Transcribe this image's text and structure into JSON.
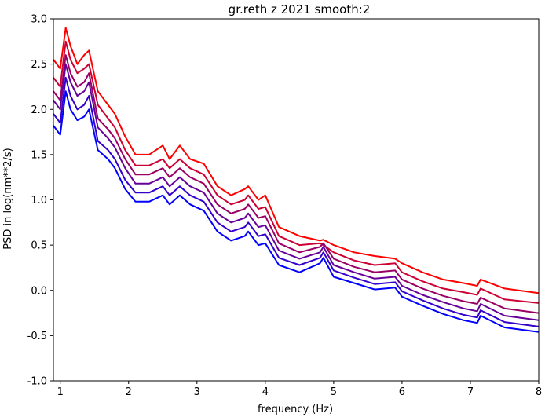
{
  "chart_data": {
    "type": "line",
    "title": "gr.reth z 2021 smooth:2",
    "xlabel": "frequency (Hz)",
    "ylabel": "PSD in log(nm**2/s)",
    "xlim": [
      0.9,
      8.0
    ],
    "ylim": [
      -1.0,
      3.0
    ],
    "xticks": [
      "1",
      "2",
      "3",
      "4",
      "5",
      "6",
      "7",
      "8"
    ],
    "yticks": [
      "3.0",
      "2.5",
      "2.0",
      "1.5",
      "1.0",
      "0.5",
      "0.0",
      "-0.5",
      "-1.0"
    ],
    "grid": false,
    "legend": "none",
    "series": [
      {
        "color": "#ff0000",
        "x": [
          0.9,
          1.0,
          1.08,
          1.15,
          1.25,
          1.35,
          1.42,
          1.55,
          1.7,
          1.8,
          1.95,
          2.1,
          2.3,
          2.5,
          2.6,
          2.75,
          2.9,
          3.1,
          3.3,
          3.5,
          3.7,
          3.75,
          3.9,
          4.0,
          4.2,
          4.5,
          4.8,
          4.85,
          5.0,
          5.3,
          5.6,
          5.9,
          6.0,
          6.3,
          6.6,
          6.9,
          7.1,
          7.15,
          7.5,
          8.0
        ],
        "y": [
          2.55,
          2.45,
          2.9,
          2.7,
          2.5,
          2.6,
          2.65,
          2.2,
          2.05,
          1.95,
          1.7,
          1.5,
          1.5,
          1.6,
          1.45,
          1.6,
          1.45,
          1.4,
          1.15,
          1.05,
          1.12,
          1.15,
          1.0,
          1.05,
          0.7,
          0.6,
          0.55,
          0.56,
          0.5,
          0.42,
          0.38,
          0.35,
          0.3,
          0.2,
          0.12,
          0.08,
          0.05,
          0.12,
          0.02,
          -0.03
        ]
      },
      {
        "color": "#cc0033",
        "x": [
          0.9,
          1.0,
          1.08,
          1.15,
          1.25,
          1.35,
          1.42,
          1.55,
          1.7,
          1.8,
          1.95,
          2.1,
          2.3,
          2.5,
          2.6,
          2.75,
          2.9,
          3.1,
          3.3,
          3.5,
          3.7,
          3.75,
          3.9,
          4.0,
          4.2,
          4.5,
          4.8,
          4.85,
          5.0,
          5.3,
          5.6,
          5.9,
          6.0,
          6.3,
          6.6,
          6.9,
          7.1,
          7.15,
          7.5,
          8.0
        ],
        "y": [
          2.35,
          2.25,
          2.75,
          2.55,
          2.4,
          2.45,
          2.5,
          2.05,
          1.9,
          1.8,
          1.55,
          1.38,
          1.38,
          1.45,
          1.35,
          1.45,
          1.35,
          1.28,
          1.05,
          0.95,
          1.0,
          1.05,
          0.9,
          0.92,
          0.6,
          0.5,
          0.52,
          0.5,
          0.42,
          0.33,
          0.28,
          0.3,
          0.2,
          0.1,
          0.02,
          -0.02,
          -0.05,
          0.02,
          -0.1,
          -0.14
        ]
      },
      {
        "color": "#990066",
        "x": [
          0.9,
          1.0,
          1.08,
          1.15,
          1.25,
          1.35,
          1.42,
          1.55,
          1.7,
          1.8,
          1.95,
          2.1,
          2.3,
          2.5,
          2.6,
          2.75,
          2.9,
          3.1,
          3.3,
          3.5,
          3.7,
          3.75,
          3.9,
          4.0,
          4.2,
          4.5,
          4.8,
          4.85,
          5.0,
          5.3,
          5.6,
          5.9,
          6.0,
          6.3,
          6.6,
          6.9,
          7.1,
          7.15,
          7.5,
          8.0
        ],
        "y": [
          2.2,
          2.1,
          2.6,
          2.4,
          2.25,
          2.3,
          2.4,
          1.9,
          1.78,
          1.68,
          1.45,
          1.28,
          1.28,
          1.35,
          1.25,
          1.35,
          1.25,
          1.18,
          0.95,
          0.85,
          0.9,
          0.95,
          0.8,
          0.82,
          0.52,
          0.42,
          0.48,
          0.52,
          0.35,
          0.26,
          0.2,
          0.22,
          0.12,
          0.02,
          -0.06,
          -0.12,
          -0.15,
          -0.08,
          -0.2,
          -0.25
        ]
      },
      {
        "color": "#660099",
        "x": [
          0.9,
          1.0,
          1.08,
          1.15,
          1.25,
          1.35,
          1.42,
          1.55,
          1.7,
          1.8,
          1.95,
          2.1,
          2.3,
          2.5,
          2.6,
          2.75,
          2.9,
          3.1,
          3.3,
          3.5,
          3.7,
          3.75,
          3.9,
          4.0,
          4.2,
          4.5,
          4.8,
          4.85,
          5.0,
          5.3,
          5.6,
          5.9,
          6.0,
          6.3,
          6.6,
          6.9,
          7.1,
          7.15,
          7.5,
          8.0
        ],
        "y": [
          2.1,
          2.0,
          2.5,
          2.3,
          2.15,
          2.2,
          2.3,
          1.8,
          1.68,
          1.58,
          1.35,
          1.18,
          1.18,
          1.25,
          1.15,
          1.25,
          1.15,
          1.08,
          0.85,
          0.75,
          0.8,
          0.85,
          0.7,
          0.72,
          0.44,
          0.35,
          0.42,
          0.48,
          0.28,
          0.2,
          0.13,
          0.15,
          0.05,
          -0.05,
          -0.13,
          -0.2,
          -0.23,
          -0.15,
          -0.28,
          -0.33
        ]
      },
      {
        "color": "#3300cc",
        "x": [
          0.9,
          1.0,
          1.08,
          1.15,
          1.25,
          1.35,
          1.42,
          1.55,
          1.7,
          1.8,
          1.95,
          2.1,
          2.3,
          2.5,
          2.6,
          2.75,
          2.9,
          3.1,
          3.3,
          3.5,
          3.7,
          3.75,
          3.9,
          4.0,
          4.2,
          4.5,
          4.8,
          4.85,
          5.0,
          5.3,
          5.6,
          5.9,
          6.0,
          6.3,
          6.6,
          6.9,
          7.1,
          7.15,
          7.5,
          8.0
        ],
        "y": [
          1.95,
          1.85,
          2.35,
          2.15,
          2.0,
          2.05,
          2.15,
          1.65,
          1.55,
          1.45,
          1.22,
          1.08,
          1.08,
          1.15,
          1.05,
          1.15,
          1.05,
          0.98,
          0.75,
          0.65,
          0.7,
          0.75,
          0.6,
          0.62,
          0.36,
          0.28,
          0.36,
          0.42,
          0.22,
          0.14,
          0.07,
          0.09,
          -0.01,
          -0.11,
          -0.2,
          -0.27,
          -0.3,
          -0.22,
          -0.35,
          -0.4
        ]
      },
      {
        "color": "#0000ff",
        "x": [
          0.9,
          1.0,
          1.08,
          1.15,
          1.25,
          1.35,
          1.42,
          1.55,
          1.7,
          1.8,
          1.95,
          2.1,
          2.3,
          2.5,
          2.6,
          2.75,
          2.9,
          3.1,
          3.3,
          3.5,
          3.7,
          3.75,
          3.9,
          4.0,
          4.2,
          4.5,
          4.8,
          4.85,
          5.0,
          5.3,
          5.6,
          5.9,
          6.0,
          6.3,
          6.6,
          6.9,
          7.1,
          7.15,
          7.5,
          8.0
        ],
        "y": [
          1.82,
          1.72,
          2.2,
          2.0,
          1.88,
          1.92,
          2.0,
          1.55,
          1.45,
          1.35,
          1.12,
          0.98,
          0.98,
          1.05,
          0.95,
          1.05,
          0.95,
          0.88,
          0.65,
          0.55,
          0.6,
          0.65,
          0.5,
          0.52,
          0.28,
          0.2,
          0.3,
          0.36,
          0.15,
          0.08,
          0.01,
          0.03,
          -0.07,
          -0.17,
          -0.26,
          -0.33,
          -0.36,
          -0.28,
          -0.41,
          -0.46
        ]
      }
    ]
  }
}
